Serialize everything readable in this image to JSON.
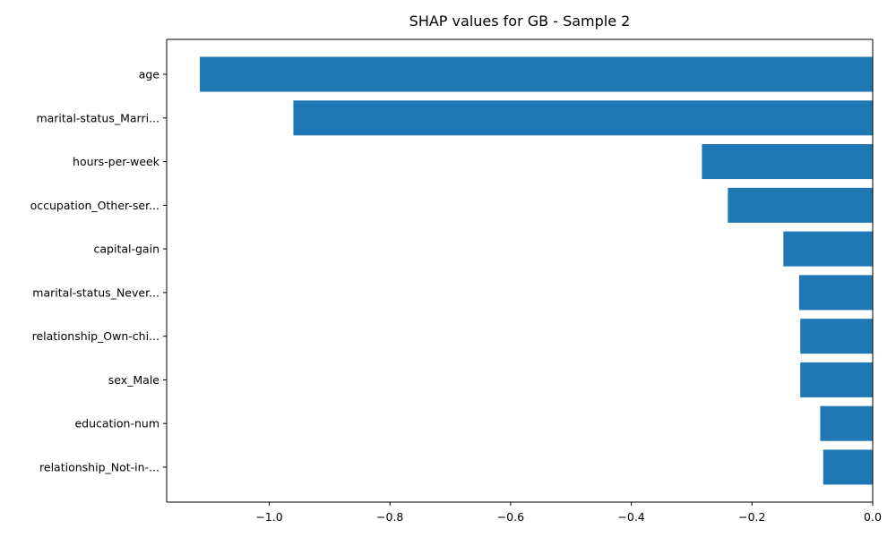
{
  "chart_data": {
    "type": "bar",
    "orientation": "horizontal",
    "title": "SHAP values for GB - Sample 2",
    "xlabel": "",
    "ylabel": "",
    "categories": [
      "age",
      "marital-status_Marri...",
      "hours-per-week",
      "occupation_Other-ser...",
      "capital-gain",
      "marital-status_Never...",
      "relationship_Own-chi...",
      "sex_Male",
      "education-num",
      "relationship_Not-in-..."
    ],
    "values": [
      -1.115,
      -0.96,
      -0.283,
      -0.24,
      -0.148,
      -0.122,
      -0.12,
      -0.12,
      -0.087,
      -0.082
    ],
    "xlim": [
      -1.17,
      0.0
    ],
    "xticks": [
      -1.0,
      -0.8,
      -0.6,
      -0.4,
      -0.2,
      0.0
    ],
    "xtick_labels": [
      "−1.0",
      "−0.8",
      "−0.6",
      "−0.4",
      "−0.2",
      "0.0"
    ],
    "grid": false,
    "legend": "none",
    "bar_color": "#1f77b4"
  }
}
